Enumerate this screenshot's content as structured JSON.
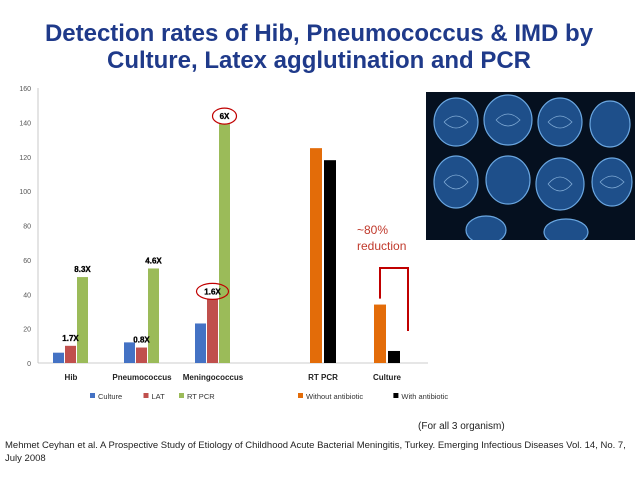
{
  "slide": {
    "title": "Detection rates of Hib, Pneumococcus & IMD by Culture, Latex agglutination and PCR",
    "reduction_label": "~80% reduction",
    "footnote": "(For all 3 organism)",
    "citation": "Mehmet Ceyhan et al. A Prospective Study of Etiology of Childhood Acute Bacterial Meningitis, Turkey. Emerging Infectious Diseases Vol. 14, No. 7, July 2008",
    "image_description": "brain-mri-scans"
  },
  "chart_data": [
    {
      "type": "bar",
      "title": "",
      "categories": [
        "Hib",
        "Pneumococcus",
        "Meningococcus"
      ],
      "series": [
        {
          "name": "Culture",
          "color": "#4472c4",
          "values": [
            6,
            12,
            23
          ]
        },
        {
          "name": "LAT",
          "color": "#c0504d",
          "values": [
            10,
            9,
            37
          ]
        },
        {
          "name": "RT PCR",
          "color": "#9bbb59",
          "values": [
            50,
            55,
            139
          ]
        }
      ],
      "annotations": [
        {
          "text": "1.7X",
          "category": "Hib",
          "series": "LAT",
          "circled": false
        },
        {
          "text": "8.3X",
          "category": "Hib",
          "series": "RT PCR",
          "circled": false
        },
        {
          "text": "0.8X",
          "category": "Pneumococcus",
          "series": "LAT",
          "circled": false
        },
        {
          "text": "4.6X",
          "category": "Pneumococcus",
          "series": "RT PCR",
          "circled": false
        },
        {
          "text": "1.6X",
          "category": "Meningococcus",
          "series": "LAT",
          "circled": true
        },
        {
          "text": "6X",
          "category": "Meningococcus",
          "series": "RT PCR",
          "circled": true
        }
      ],
      "ylim": [
        0,
        160
      ],
      "yticks": [
        0,
        20,
        40,
        60,
        80,
        100,
        120,
        140,
        160
      ],
      "grid": false,
      "legend": "bottom"
    },
    {
      "type": "bar",
      "title": "",
      "categories": [
        "RT PCR",
        "Culture"
      ],
      "series": [
        {
          "name": "Without antibiotic",
          "color": "#e36c09",
          "values": [
            125,
            34
          ]
        },
        {
          "name": "With antibiotic",
          "color": "#000000",
          "values": [
            118,
            7
          ]
        }
      ],
      "ylim": [
        0,
        160
      ],
      "legend": "bottom"
    }
  ]
}
